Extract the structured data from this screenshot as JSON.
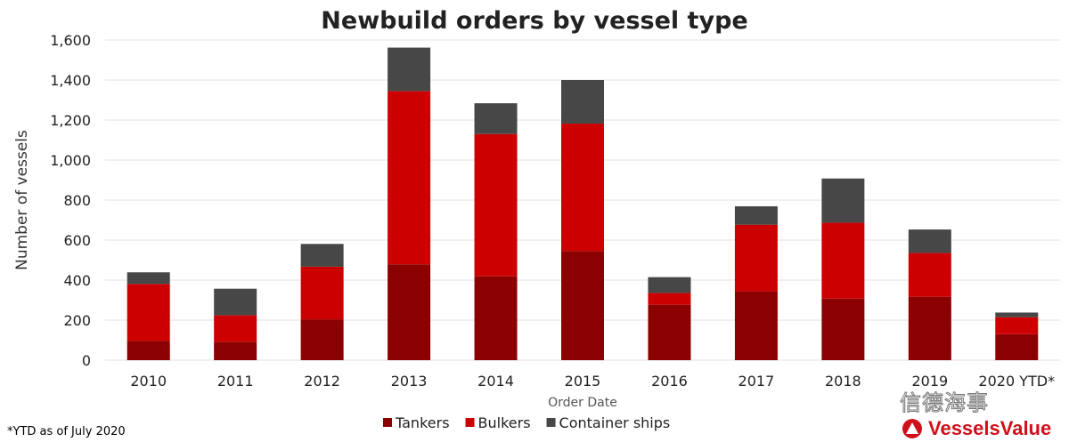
{
  "chart_data": {
    "type": "bar",
    "stacked": true,
    "title": "Newbuild orders by vessel type",
    "xlabel": "Order Date",
    "ylabel": "Number of vessels",
    "ylim": [
      0,
      1600
    ],
    "yticks": [
      0,
      200,
      400,
      600,
      800,
      1000,
      1200,
      1400,
      1600
    ],
    "ytick_labels": [
      "0",
      "200",
      "400",
      "600",
      "800",
      "1,000",
      "1,200",
      "1,400",
      "1,600"
    ],
    "grid": true,
    "legend_position": "bottom",
    "categories": [
      "2010",
      "2011",
      "2012",
      "2013",
      "2014",
      "2015",
      "2016",
      "2017",
      "2018",
      "2019",
      "2020 YTD*"
    ],
    "series": [
      {
        "name": "Tankers",
        "color": "#8b0000",
        "values": [
          96,
          92,
          204,
          479,
          419,
          545,
          277,
          344,
          308,
          317,
          130
        ]
      },
      {
        "name": "Bulkers",
        "color": "#cc0000",
        "values": [
          285,
          133,
          263,
          866,
          711,
          637,
          59,
          333,
          379,
          219,
          85
        ]
      },
      {
        "name": "Container ships",
        "color": "#474747",
        "values": [
          58,
          132,
          114,
          217,
          154,
          218,
          79,
          92,
          221,
          117,
          23
        ]
      }
    ],
    "footnote": "*YTD as of July 2020"
  },
  "watermark": "信德海事",
  "logo": "VesselsValue"
}
